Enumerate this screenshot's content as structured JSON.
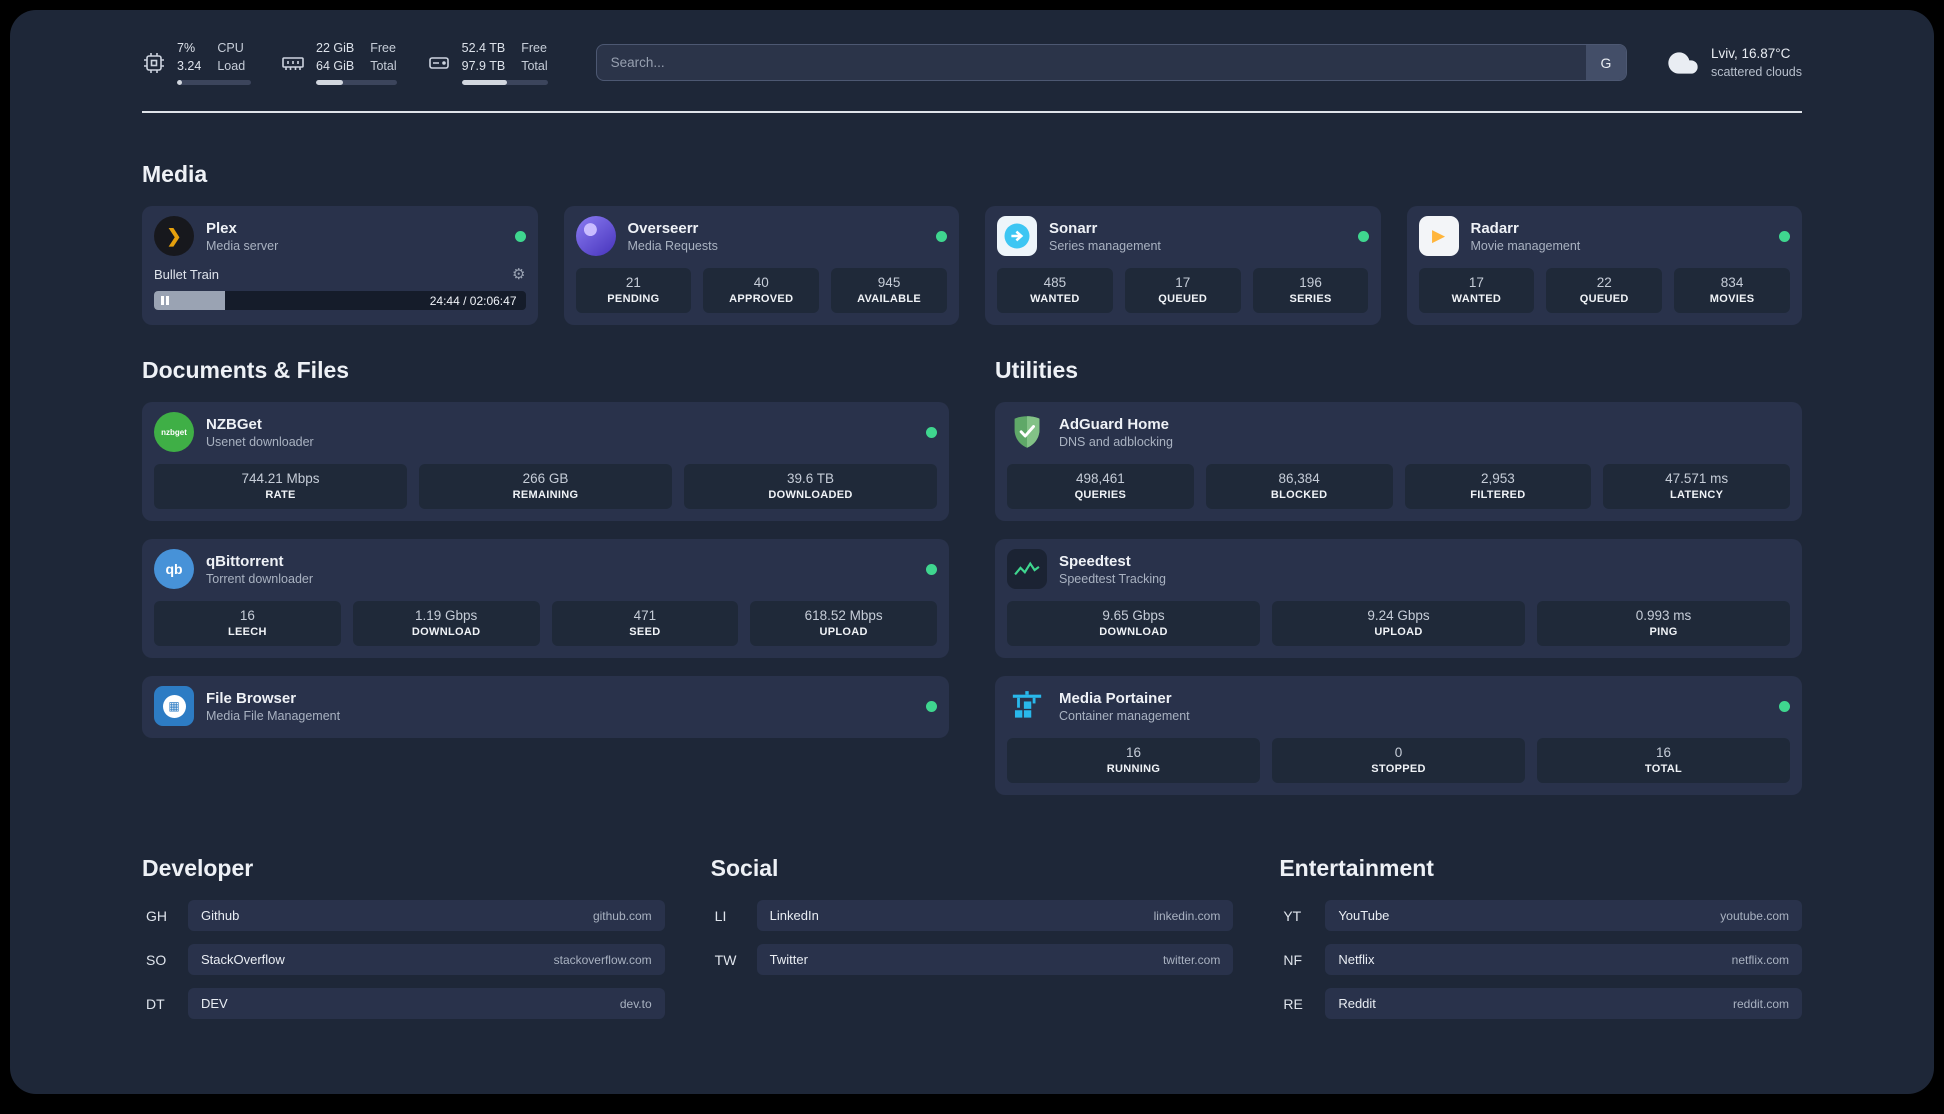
{
  "topbar": {
    "cpu": {
      "icon": "cpu-icon",
      "value1": "7%",
      "value2": "3.24",
      "label1": "CPU",
      "label2": "Load",
      "progress": 7
    },
    "memory": {
      "icon": "memory-icon",
      "value1": "22 GiB",
      "value2": "64 GiB",
      "label1": "Free",
      "label2": "Total",
      "progress": 34
    },
    "disk": {
      "icon": "disk-icon",
      "value1": "52.4 TB",
      "value2": "97.9 TB",
      "label1": "Free",
      "label2": "Total",
      "progress": 53
    },
    "search": {
      "placeholder": "Search...",
      "button_label": "G"
    },
    "weather": {
      "icon": "cloud-icon",
      "location": "Lviv, 16.87°C",
      "condition": "scattered clouds"
    }
  },
  "media": {
    "title": "Media",
    "plex": {
      "icon": "plex-icon",
      "name": "Plex",
      "subtitle": "Media server",
      "status": "online",
      "now_playing": {
        "title": "Bullet Train",
        "time": "24:44 / 02:06:47",
        "progress": 19
      }
    },
    "overseerr": {
      "icon": "overseerr-icon",
      "name": "Overseerr",
      "subtitle": "Media Requests",
      "status": "online",
      "stats": [
        {
          "value": "21",
          "label": "PENDING"
        },
        {
          "value": "40",
          "label": "APPROVED"
        },
        {
          "value": "945",
          "label": "AVAILABLE"
        }
      ]
    },
    "sonarr": {
      "icon": "sonarr-icon",
      "name": "Sonarr",
      "subtitle": "Series management",
      "status": "online",
      "stats": [
        {
          "value": "485",
          "label": "WANTED"
        },
        {
          "value": "17",
          "label": "QUEUED"
        },
        {
          "value": "196",
          "label": "SERIES"
        }
      ]
    },
    "radarr": {
      "icon": "radarr-icon",
      "name": "Radarr",
      "subtitle": "Movie management",
      "status": "online",
      "stats": [
        {
          "value": "17",
          "label": "WANTED"
        },
        {
          "value": "22",
          "label": "QUEUED"
        },
        {
          "value": "834",
          "label": "MOVIES"
        }
      ]
    }
  },
  "documents": {
    "title": "Documents & Files",
    "nzbget": {
      "icon": "nzbget-icon",
      "icon_text": "nzbget",
      "name": "NZBGet",
      "subtitle": "Usenet downloader",
      "status": "online",
      "stats": [
        {
          "value": "744.21 Mbps",
          "label": "RATE"
        },
        {
          "value": "266 GB",
          "label": "REMAINING"
        },
        {
          "value": "39.6 TB",
          "label": "DOWNLOADED"
        }
      ]
    },
    "qbittorrent": {
      "icon": "qbittorrent-icon",
      "icon_text": "qb",
      "name": "qBittorrent",
      "subtitle": "Torrent downloader",
      "status": "online",
      "stats": [
        {
          "value": "16",
          "label": "LEECH"
        },
        {
          "value": "1.19 Gbps",
          "label": "DOWNLOAD"
        },
        {
          "value": "471",
          "label": "SEED"
        },
        {
          "value": "618.52 Mbps",
          "label": "UPLOAD"
        }
      ]
    },
    "filebrowser": {
      "icon": "filebrowser-icon",
      "icon_text": "▦",
      "name": "File Browser",
      "subtitle": "Media File Management",
      "status": "online"
    }
  },
  "utilities": {
    "title": "Utilities",
    "adguard": {
      "icon": "adguard-icon",
      "name": "AdGuard Home",
      "subtitle": "DNS and adblocking",
      "status": "none",
      "stats": [
        {
          "value": "498,461",
          "label": "QUERIES"
        },
        {
          "value": "86,384",
          "label": "BLOCKED"
        },
        {
          "value": "2,953",
          "label": "FILTERED"
        },
        {
          "value": "47.571 ms",
          "label": "LATENCY"
        }
      ]
    },
    "speedtest": {
      "icon": "speedtest-icon",
      "name": "Speedtest",
      "subtitle": "Speedtest Tracking",
      "status": "none",
      "stats": [
        {
          "value": "9.65 Gbps",
          "label": "DOWNLOAD"
        },
        {
          "value": "9.24 Gbps",
          "label": "UPLOAD"
        },
        {
          "value": "0.993 ms",
          "label": "PING"
        }
      ]
    },
    "portainer": {
      "icon": "portainer-icon",
      "name": "Media Portainer",
      "subtitle": "Container management",
      "status": "online",
      "stats": [
        {
          "value": "16",
          "label": "RUNNING"
        },
        {
          "value": "0",
          "label": "STOPPED"
        },
        {
          "value": "16",
          "label": "TOTAL"
        }
      ]
    }
  },
  "bookmarks": {
    "developer": {
      "title": "Developer",
      "items": [
        {
          "abbr": "GH",
          "name": "Github",
          "url": "github.com"
        },
        {
          "abbr": "SO",
          "name": "StackOverflow",
          "url": "stackoverflow.com"
        },
        {
          "abbr": "DT",
          "name": "DEV",
          "url": "dev.to"
        }
      ]
    },
    "social": {
      "title": "Social",
      "items": [
        {
          "abbr": "LI",
          "name": "LinkedIn",
          "url": "linkedin.com"
        },
        {
          "abbr": "TW",
          "name": "Twitter",
          "url": "twitter.com"
        }
      ]
    },
    "entertainment": {
      "title": "Entertainment",
      "items": [
        {
          "abbr": "YT",
          "name": "YouTube",
          "url": "youtube.com"
        },
        {
          "abbr": "NF",
          "name": "Netflix",
          "url": "netflix.com"
        },
        {
          "abbr": "RE",
          "name": "Reddit",
          "url": "reddit.com"
        }
      ]
    }
  },
  "colors": {
    "background": "#1e2738",
    "card": "#29324b",
    "stat_tile": "#1f2939",
    "status_online": "#3fd68f",
    "plex_accent": "#e5a00d",
    "divider": "#dfe3e9"
  }
}
